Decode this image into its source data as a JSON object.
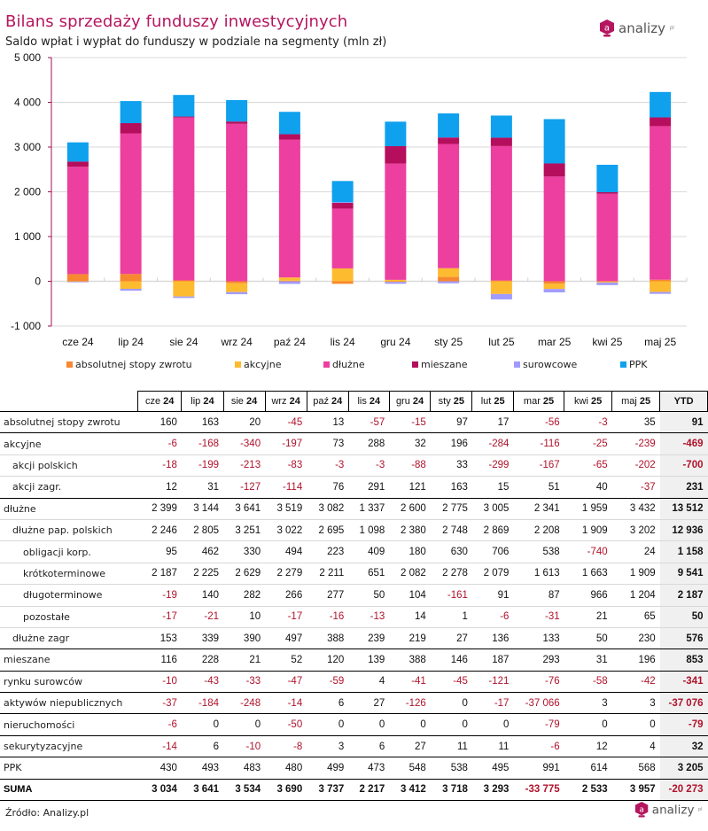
{
  "header": {
    "title": "Bilans sprzedaży funduszy inwestycyjnych",
    "subtitle": "Saldo wpłat i wypłat do funduszy w podziale na segmenty (mln zł)",
    "logo_text": "analizy",
    "logo_sup": "pl",
    "logo_glyph": "a"
  },
  "colors": {
    "title": "#b5155f",
    "negative": "#b0122b",
    "axis": "#a0104f"
  },
  "chart_data": {
    "type": "bar",
    "stacked": true,
    "title": "Bilans sprzedaży funduszy inwestycyjnych",
    "subtitle": "Saldo wpłat i wypłat do funduszy w podziale na segmenty (mln zł)",
    "xlabel": "",
    "ylabel": "",
    "ylim": [
      -1000,
      5000
    ],
    "yticks": [
      -1000,
      0,
      1000,
      2000,
      3000,
      4000,
      5000
    ],
    "ytick_labels": [
      "-1 000",
      "0",
      "1 000",
      "2 000",
      "3 000",
      "4 000",
      "5 000"
    ],
    "grid": true,
    "legend_position": "bottom",
    "categories": [
      "cze 24",
      "lip 24",
      "sie 24",
      "wrz 24",
      "paź 24",
      "lis 24",
      "gru 24",
      "sty 25",
      "lut 25",
      "mar 25",
      "kwi 25",
      "maj 25"
    ],
    "series": [
      {
        "name": "absolutnej stopy zwrotu",
        "color": "#f7882f",
        "values": [
          160,
          163,
          20,
          -45,
          13,
          -57,
          -15,
          97,
          17,
          -56,
          -3,
          35
        ]
      },
      {
        "name": "akcyjne",
        "color": "#fdbb30",
        "values": [
          -6,
          -168,
          -340,
          -197,
          73,
          288,
          32,
          196,
          -284,
          -116,
          -25,
          -239
        ]
      },
      {
        "name": "dłużne",
        "color": "#ec3f9f",
        "values": [
          2399,
          3144,
          3641,
          3519,
          3082,
          1337,
          2600,
          2775,
          3005,
          2341,
          1959,
          3432
        ]
      },
      {
        "name": "mieszane",
        "color": "#b50e5d",
        "values": [
          116,
          228,
          21,
          52,
          120,
          139,
          388,
          146,
          187,
          293,
          31,
          196
        ]
      },
      {
        "name": "surowcowe",
        "color": "#a29bfe",
        "values": [
          -10,
          -43,
          -33,
          -47,
          -59,
          4,
          -41,
          -45,
          -121,
          -76,
          -58,
          -42
        ]
      },
      {
        "name": "PPK",
        "color": "#0fa0ee",
        "values": [
          430,
          493,
          483,
          480,
          499,
          473,
          548,
          538,
          495,
          991,
          614,
          568
        ]
      }
    ]
  },
  "table": {
    "columns": [
      "cze 24",
      "lip 24",
      "sie 24",
      "wrz 24",
      "paź 24",
      "lis 24",
      "gru 24",
      "sty 25",
      "lut 25",
      "mar 25",
      "kwi 25",
      "maj 25",
      "YTD"
    ],
    "column_parts": [
      [
        "cze",
        "24"
      ],
      [
        "lip",
        "24"
      ],
      [
        "sie",
        "24"
      ],
      [
        "wrz",
        "24"
      ],
      [
        "paź",
        "24"
      ],
      [
        "lis",
        "24"
      ],
      [
        "gru",
        "24"
      ],
      [
        "sty",
        "25"
      ],
      [
        "lut",
        "25"
      ],
      [
        "mar",
        "25"
      ],
      [
        "kwi",
        "25"
      ],
      [
        "maj",
        "25"
      ]
    ],
    "ytd_label": "YTD",
    "rows": [
      {
        "label": "absolutnej stopy zwrotu",
        "level": 0,
        "strong": true,
        "values": [
          "160",
          "163",
          "20",
          "-45",
          "13",
          "-57",
          "-15",
          "97",
          "17",
          "-56",
          "-3",
          "35"
        ],
        "ytd": "91"
      },
      {
        "label": "akcyjne",
        "level": 0,
        "strong": false,
        "values": [
          "-6",
          "-168",
          "-340",
          "-197",
          "73",
          "288",
          "32",
          "196",
          "-284",
          "-116",
          "-25",
          "-239"
        ],
        "ytd": "-469"
      },
      {
        "label": "akcji polskich",
        "level": 1,
        "strong": false,
        "values": [
          "-18",
          "-199",
          "-213",
          "-83",
          "-3",
          "-3",
          "-88",
          "33",
          "-299",
          "-167",
          "-65",
          "-202"
        ],
        "ytd": "-700"
      },
      {
        "label": "akcji zagr.",
        "level": 1,
        "strong": true,
        "values": [
          "12",
          "31",
          "-127",
          "-114",
          "76",
          "291",
          "121",
          "163",
          "15",
          "51",
          "40",
          "-37"
        ],
        "ytd": "231"
      },
      {
        "label": "dłużne",
        "level": 0,
        "strong": false,
        "values": [
          "2 399",
          "3 144",
          "3 641",
          "3 519",
          "3 082",
          "1 337",
          "2 600",
          "2 775",
          "3 005",
          "2 341",
          "1 959",
          "3 432"
        ],
        "ytd": "13 512"
      },
      {
        "label": "dłużne pap. polskich",
        "level": 1,
        "strong": false,
        "values": [
          "2 246",
          "2 805",
          "3 251",
          "3 022",
          "2 695",
          "1 098",
          "2 380",
          "2 748",
          "2 869",
          "2 208",
          "1 909",
          "3 202"
        ],
        "ytd": "12 936"
      },
      {
        "label": "obligacji korp.",
        "level": 2,
        "strong": false,
        "values": [
          "95",
          "462",
          "330",
          "494",
          "223",
          "409",
          "180",
          "630",
          "706",
          "538",
          "-740",
          "24"
        ],
        "ytd": "1 158"
      },
      {
        "label": "krótkoterminowe",
        "level": 2,
        "strong": false,
        "values": [
          "2 187",
          "2 225",
          "2 629",
          "2 279",
          "2 211",
          "651",
          "2 082",
          "2 278",
          "2 079",
          "1 613",
          "1 663",
          "1 909"
        ],
        "ytd": "9 541"
      },
      {
        "label": "długoterminowe",
        "level": 2,
        "strong": false,
        "values": [
          "-19",
          "140",
          "282",
          "266",
          "277",
          "50",
          "104",
          "-161",
          "91",
          "87",
          "966",
          "1 204"
        ],
        "ytd": "2 187"
      },
      {
        "label": "pozostałe",
        "level": 2,
        "strong": false,
        "values": [
          "-17",
          "-21",
          "10",
          "-17",
          "-16",
          "-13",
          "14",
          "1",
          "-6",
          "-31",
          "21",
          "65"
        ],
        "ytd": "50"
      },
      {
        "label": "dłużne zagr",
        "level": 1,
        "strong": true,
        "values": [
          "153",
          "339",
          "390",
          "497",
          "388",
          "239",
          "219",
          "27",
          "136",
          "133",
          "50",
          "230"
        ],
        "ytd": "576"
      },
      {
        "label": "mieszane",
        "level": 0,
        "strong": true,
        "values": [
          "116",
          "228",
          "21",
          "52",
          "120",
          "139",
          "388",
          "146",
          "187",
          "293",
          "31",
          "196"
        ],
        "ytd": "853"
      },
      {
        "label": "rynku surowców",
        "level": 0,
        "strong": true,
        "values": [
          "-10",
          "-43",
          "-33",
          "-47",
          "-59",
          "4",
          "-41",
          "-45",
          "-121",
          "-76",
          "-58",
          "-42"
        ],
        "ytd": "-341"
      },
      {
        "label": "aktywów niepublicznych",
        "level": 0,
        "strong": true,
        "values": [
          "-37",
          "-184",
          "-248",
          "-14",
          "6",
          "27",
          "-126",
          "0",
          "-17",
          "-37 066",
          "3",
          "3"
        ],
        "ytd": "-37 076"
      },
      {
        "label": "nieruchomości",
        "level": 0,
        "strong": true,
        "values": [
          "-6",
          "0",
          "0",
          "-50",
          "0",
          "0",
          "0",
          "0",
          "0",
          "-79",
          "0",
          "0"
        ],
        "ytd": "-79"
      },
      {
        "label": "sekurytyzacyjne",
        "level": 0,
        "strong": true,
        "values": [
          "-14",
          "6",
          "-10",
          "-8",
          "3",
          "6",
          "27",
          "11",
          "11",
          "-6",
          "12",
          "4"
        ],
        "ytd": "32"
      },
      {
        "label": "PPK",
        "level": 0,
        "strong": true,
        "values": [
          "430",
          "493",
          "483",
          "480",
          "499",
          "473",
          "548",
          "538",
          "495",
          "991",
          "614",
          "568"
        ],
        "ytd": "3 205"
      },
      {
        "label": "SUMA",
        "level": 0,
        "sum": true,
        "values": [
          "3 034",
          "3 641",
          "3 534",
          "3 690",
          "3 737",
          "2 217",
          "3 412",
          "3 718",
          "3 293",
          "-33 775",
          "2 533",
          "3 957"
        ],
        "ytd": "-20 273"
      }
    ]
  },
  "footer": {
    "source": "Źródło: Analizy.pl"
  }
}
